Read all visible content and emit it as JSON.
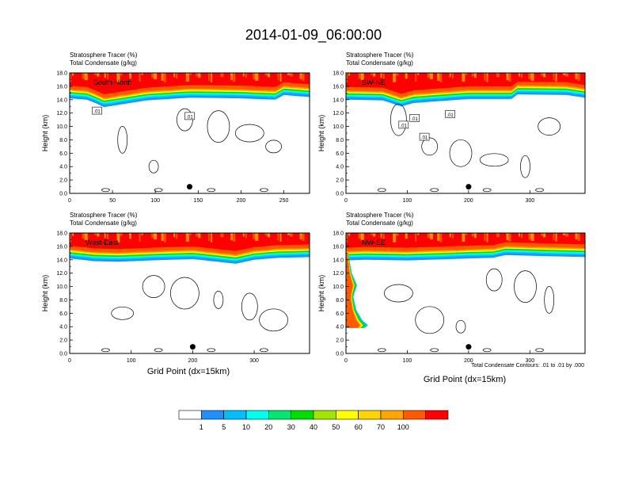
{
  "figure": {
    "title": "2014-01-09_06:00:00",
    "label_tracer": "Stratosphere Tracer",
    "label_tracer_unit": "(%)",
    "label_condensate": "Total Condensate",
    "label_condensate_unit": "(g/kg)",
    "ylabel": "Height (km)",
    "xlabel": "Grid Point (dx=15km)",
    "contour_info": "Total Condensate Contours: .01 to .01 by .000"
  },
  "colorbar": {
    "colors": [
      "#ffffff",
      "#1e90ff",
      "#00bfff",
      "#00ffee",
      "#00e870",
      "#00dd00",
      "#a0e600",
      "#ffff00",
      "#ffd400",
      "#ffa500",
      "#ff5a00",
      "#ff0000"
    ],
    "labels": [
      "1",
      "5",
      "10",
      "20",
      "30",
      "40",
      "50",
      "60",
      "70",
      "100"
    ]
  },
  "chart_data": [
    {
      "type": "heatmap",
      "panel_label": "South-North",
      "x_range": [
        0,
        280
      ],
      "x_ticks": [
        0,
        50,
        100,
        150,
        200,
        250
      ],
      "y_range": [
        0,
        18
      ],
      "y_ticks": [
        "0.0",
        "2.0",
        "4.0",
        "6.0",
        "8.0",
        "10.0",
        "12.0",
        "14.0",
        "16.0",
        "18.0"
      ],
      "tropopause_height_km": [
        [
          0,
          15.5
        ],
        [
          20,
          15.3
        ],
        [
          30,
          14.8
        ],
        [
          40,
          14.2
        ],
        [
          60,
          14.6
        ],
        [
          90,
          15.2
        ],
        [
          140,
          15.6
        ],
        [
          200,
          15.5
        ],
        [
          240,
          15.3
        ],
        [
          250,
          16.0
        ],
        [
          280,
          15.7
        ]
      ],
      "tracer_top_km": 18,
      "contour_labels": [
        {
          "text": ".01",
          "x": 32,
          "h": 12.3
        },
        {
          "text": ".01",
          "x": 140,
          "h": 11.5
        }
      ],
      "marker": {
        "x": 140,
        "h": 1.0
      }
    },
    {
      "type": "heatmap",
      "panel_label": "SW-NE",
      "x_range": [
        0,
        390
      ],
      "x_ticks": [
        0,
        100,
        200,
        300
      ],
      "y_range": [
        0,
        18
      ],
      "y_ticks": [
        "0.0",
        "2.0",
        "4.0",
        "6.0",
        "8.0",
        "10.0",
        "12.0",
        "14.0",
        "16.0",
        "18.0"
      ],
      "tropopause_height_km": [
        [
          0,
          15.3
        ],
        [
          60,
          15.2
        ],
        [
          90,
          14.3
        ],
        [
          110,
          14.8
        ],
        [
          140,
          15.0
        ],
        [
          200,
          15.4
        ],
        [
          270,
          15.4
        ],
        [
          280,
          16.1
        ],
        [
          360,
          16.0
        ],
        [
          390,
          15.6
        ]
      ],
      "tracer_top_km": 18,
      "contour_labels": [
        {
          "text": ".01",
          "x": 94,
          "h": 10.2
        },
        {
          "text": ".01",
          "x": 112,
          "h": 11.2
        },
        {
          "text": ".01",
          "x": 128,
          "h": 8.4
        },
        {
          "text": ".01",
          "x": 170,
          "h": 11.8
        }
      ],
      "marker": {
        "x": 200,
        "h": 1.0
      }
    },
    {
      "type": "heatmap",
      "panel_label": "West-East",
      "x_range": [
        0,
        390
      ],
      "x_ticks": [
        0,
        100,
        200,
        300
      ],
      "y_range": [
        0,
        18
      ],
      "y_ticks": [
        "0.0",
        "2.0",
        "4.0",
        "6.0",
        "8.0",
        "10.0",
        "12.0",
        "14.0",
        "16.0",
        "18.0"
      ],
      "tropopause_height_km": [
        [
          0,
          15.5
        ],
        [
          40,
          15.1
        ],
        [
          80,
          15.0
        ],
        [
          130,
          15.2
        ],
        [
          200,
          15.4
        ],
        [
          270,
          14.7
        ],
        [
          300,
          15.3
        ],
        [
          340,
          15.6
        ],
        [
          390,
          15.7
        ]
      ],
      "tracer_top_km": 18,
      "contour_labels": [],
      "marker": {
        "x": 200,
        "h": 1.0
      }
    },
    {
      "type": "heatmap",
      "panel_label": "NW-SE",
      "x_range": [
        0,
        390
      ],
      "x_ticks": [
        0,
        100,
        200,
        300
      ],
      "y_range": [
        0,
        18
      ],
      "y_ticks": [
        "0.0",
        "2.0",
        "4.0",
        "6.0",
        "8.0",
        "10.0",
        "12.0",
        "14.0",
        "16.0",
        "18.0"
      ],
      "tropopause_height_km": [
        [
          0,
          15.2
        ],
        [
          30,
          15.3
        ],
        [
          100,
          15.2
        ],
        [
          200,
          15.5
        ],
        [
          240,
          15.6
        ],
        [
          260,
          16.0
        ],
        [
          390,
          15.7
        ]
      ],
      "tracer_top_km": 18,
      "intrusion_km": [
        [
          3,
          15.0
        ],
        [
          8,
          12.0
        ],
        [
          15,
          10.2
        ],
        [
          10,
          8.5
        ],
        [
          14,
          6.5
        ],
        [
          22,
          5.0
        ],
        [
          30,
          4.2
        ],
        [
          25,
          3.8
        ]
      ],
      "contour_labels": [],
      "marker": {
        "x": 200,
        "h": 1.0
      }
    }
  ]
}
